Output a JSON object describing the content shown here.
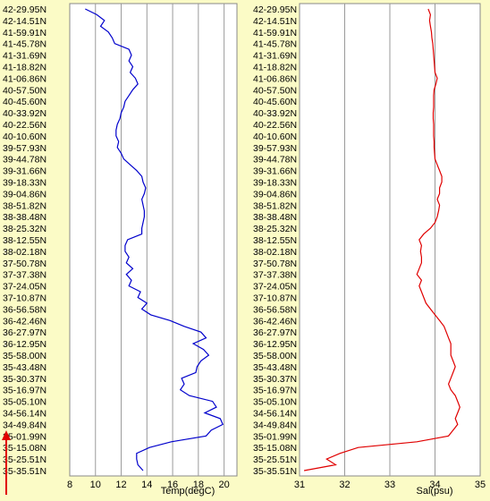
{
  "chart_data": [
    {
      "type": "line",
      "xlabel": "Temp(degC)",
      "xlim": [
        8,
        21
      ],
      "xticks": [
        8,
        10,
        12,
        14,
        16,
        18,
        20
      ],
      "grid": true,
      "line_color": "#0000cc",
      "y_categories_note": "",
      "series": [
        {
          "lat_index": [
            0,
            0.5,
            1,
            1.5,
            2,
            2.5,
            3,
            3.5,
            4,
            4.5,
            5,
            5.5,
            6,
            6.5,
            7,
            7.5,
            8,
            8.5,
            9,
            9.5,
            10,
            10.5,
            11,
            11.5,
            12,
            12.5,
            13,
            13.5,
            14,
            14.5,
            15,
            15.5,
            16,
            16.5,
            17,
            17.5,
            18,
            18.5,
            19,
            19.5,
            20,
            20.5,
            21,
            21.5,
            22,
            22.5,
            23,
            23.5,
            24,
            24.5,
            25,
            25.5,
            26,
            26.5,
            27,
            27.5,
            28,
            28.5,
            29,
            29.5,
            30,
            30.5,
            31,
            31.5,
            32,
            32.5,
            33,
            33.5,
            34,
            34.5,
            35,
            35.5,
            36,
            36.5,
            37,
            37.5,
            38,
            38.5,
            39,
            39.5,
            40
          ],
          "values": [
            9.2,
            10.1,
            10.7,
            10.4,
            11.0,
            11.3,
            11.5,
            12.6,
            12.8,
            12.6,
            12.9,
            12.7,
            13.1,
            13.3,
            12.9,
            12.6,
            12.3,
            12.2,
            12.0,
            11.9,
            11.7,
            11.6,
            11.6,
            11.8,
            11.7,
            12.0,
            12.2,
            12.7,
            13.2,
            13.6,
            13.7,
            13.9,
            13.8,
            13.6,
            13.7,
            13.8,
            13.8,
            13.7,
            13.6,
            13.6,
            12.5,
            12.3,
            12.3,
            12.6,
            12.4,
            12.9,
            12.4,
            12.8,
            12.6,
            13.5,
            13.3,
            14.0,
            13.6,
            14.3,
            15.8,
            16.9,
            18.2,
            18.6,
            17.6,
            18.4,
            18.8,
            18.2,
            17.9,
            17.8,
            16.7,
            16.9,
            16.6,
            17.3,
            19.1,
            19.4,
            18.5,
            19.7,
            19.9,
            19.0,
            18.6,
            15.9,
            14.2,
            13.2,
            13.2,
            13.3,
            13.7
          ]
        }
      ]
    },
    {
      "type": "line",
      "xlabel": "Sal(psu)",
      "xlim": [
        31,
        35
      ],
      "xticks": [
        31,
        32,
        33,
        34,
        35
      ],
      "grid": true,
      "line_color": "#e00000",
      "series": [
        {
          "lat_index": [
            0,
            0.5,
            1,
            1.5,
            2,
            2.5,
            3,
            3.5,
            4,
            4.5,
            5,
            5.5,
            6,
            6.5,
            7,
            7.5,
            8,
            8.5,
            9,
            9.5,
            10,
            10.5,
            11,
            11.5,
            12,
            12.5,
            13,
            13.5,
            14,
            14.5,
            15,
            15.5,
            16,
            16.5,
            17,
            17.5,
            18,
            18.5,
            19,
            19.5,
            20,
            20.5,
            21,
            21.5,
            22,
            22.5,
            23,
            23.5,
            24,
            24.5,
            25,
            25.5,
            26,
            26.5,
            27,
            27.5,
            28,
            28.5,
            29,
            29.5,
            30,
            30.5,
            31,
            31.5,
            32,
            32.5,
            33,
            33.5,
            34,
            34.5,
            35,
            35.5,
            36,
            36.5,
            37,
            37.5,
            38,
            38.5,
            39,
            39.5,
            40
          ],
          "values": [
            33.85,
            33.9,
            33.88,
            33.9,
            33.92,
            33.93,
            33.95,
            33.96,
            33.97,
            33.98,
            33.99,
            34.0,
            34.05,
            34.02,
            33.98,
            33.97,
            33.97,
            33.97,
            33.96,
            33.96,
            33.97,
            33.97,
            33.97,
            33.98,
            33.98,
            33.99,
            34.0,
            34.05,
            34.1,
            34.15,
            34.15,
            34.1,
            34.1,
            34.05,
            34.1,
            34.08,
            34.05,
            34.0,
            33.9,
            33.75,
            33.65,
            33.7,
            33.68,
            33.7,
            33.7,
            33.65,
            33.6,
            33.7,
            33.65,
            33.7,
            33.75,
            33.8,
            33.9,
            34.0,
            34.1,
            34.2,
            34.25,
            34.3,
            34.35,
            34.35,
            34.35,
            34.4,
            34.45,
            34.4,
            34.35,
            34.3,
            34.35,
            34.45,
            34.5,
            34.55,
            34.5,
            34.45,
            34.5,
            34.4,
            34.3,
            33.6,
            32.3,
            31.9,
            31.6,
            31.8,
            31.1
          ]
        }
      ]
    }
  ],
  "latitude_labels": [
    "42-29.95N",
    "42-14.51N",
    "41-59.91N",
    "41-45.78N",
    "41-31.69N",
    "41-18.82N",
    "41-06.86N",
    "40-57.50N",
    "40-45.60N",
    "40-33.92N",
    "40-22.56N",
    "40-10.60N",
    "39-57.93N",
    "39-44.78N",
    "39-31.66N",
    "39-18.33N",
    "39-04.86N",
    "38-51.82N",
    "38-38.48N",
    "38-25.32N",
    "38-12.55N",
    "38-02.18N",
    "37-50.78N",
    "37-37.38N",
    "37-24.05N",
    "37-10.87N",
    "36-56.58N",
    "36-42.46N",
    "36-27.97N",
    "36-12.95N",
    "35-58.00N",
    "35-43.48N",
    "35-30.37N",
    "35-16.97N",
    "35-05.10N",
    "34-56.14N",
    "34-49.84N",
    "35-01.99N",
    "35-15.08N",
    "35-25.51N",
    "35-35.51N"
  ],
  "direction_arrow_color": "#e00000"
}
